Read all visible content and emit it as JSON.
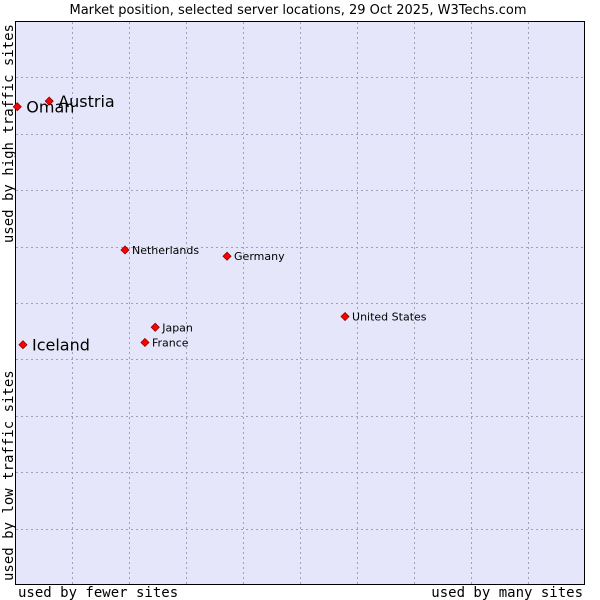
{
  "chart_data": {
    "type": "scatter",
    "title": "Market position, selected server locations, 29 Oct 2025, W3Techs.com",
    "xlabel_left": "used by fewer sites",
    "xlabel_right": "used by many sites",
    "ylabel_bottom": "used by low traffic sites",
    "ylabel_top": "used by high traffic sites",
    "xlim": [
      0,
      100
    ],
    "ylim": [
      0,
      100
    ],
    "grid": true,
    "colors": {
      "plot_background": "#e6e6fa",
      "grid": "#a0a0b8",
      "point": "#ff0000",
      "point_outline": "#8b0000"
    },
    "points": [
      {
        "label": "Oman",
        "x": 0.4,
        "y": 84.8,
        "emphasis": true
      },
      {
        "label": "Austria",
        "x": 6.0,
        "y": 85.8,
        "emphasis": true
      },
      {
        "label": "Netherlands",
        "x": 19.3,
        "y": 59.4,
        "emphasis": false
      },
      {
        "label": "Germany",
        "x": 37.2,
        "y": 58.3,
        "emphasis": false
      },
      {
        "label": "United States",
        "x": 57.9,
        "y": 47.6,
        "emphasis": false
      },
      {
        "label": "Japan",
        "x": 24.6,
        "y": 45.7,
        "emphasis": false
      },
      {
        "label": "France",
        "x": 22.8,
        "y": 43.0,
        "emphasis": false
      },
      {
        "label": "Iceland",
        "x": 1.4,
        "y": 42.6,
        "emphasis": true
      }
    ]
  }
}
